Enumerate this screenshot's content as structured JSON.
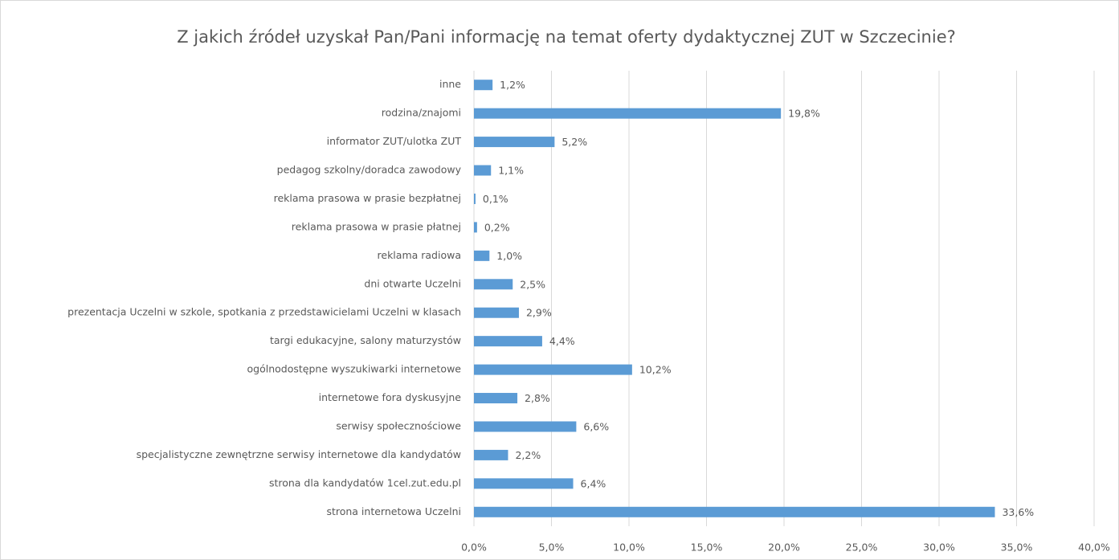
{
  "chart_data": {
    "type": "barh",
    "title": "Z jakich źródeł uzyskał Pan/Pani informację na temat oferty dydaktycznej ZUT w Szczecinie?",
    "categories": [
      "inne",
      "rodzina/znajomi",
      "informator ZUT/ulotka ZUT",
      "pedagog szkolny/doradca zawodowy",
      "reklama prasowa w prasie bezpłatnej",
      "reklama prasowa w prasie płatnej",
      "reklama radiowa",
      "dni otwarte Uczelni",
      "prezentacja Uczelni w szkole, spotkania z przedstawicielami Uczelni w klasach",
      "targi edukacyjne, salony maturzystów",
      "ogólnodostępne wyszukiwarki internetowe",
      "internetowe fora dyskusyjne",
      "serwisy społecznościowe",
      "specjalistyczne zewnętrzne serwisy internetowe dla kandydatów",
      "strona dla kandydatów 1cel.zut.edu.pl",
      "strona internetowa Uczelni"
    ],
    "values": [
      1.2,
      19.8,
      5.2,
      1.1,
      0.1,
      0.2,
      1.0,
      2.5,
      2.9,
      4.4,
      10.2,
      2.8,
      6.6,
      2.2,
      6.4,
      33.6
    ],
    "value_labels": [
      "1,2%",
      "19,8%",
      "5,2%",
      "1,1%",
      "0,1%",
      "0,2%",
      "1,0%",
      "2,5%",
      "2,9%",
      "4,4%",
      "10,2%",
      "2,8%",
      "6,6%",
      "2,2%",
      "6,4%",
      "33,6%"
    ],
    "color": "#5b9bd5",
    "xlim": [
      0,
      40
    ],
    "xticks": [
      {
        "value": 0,
        "label": "0,0%"
      },
      {
        "value": 5,
        "label": "5,0%"
      },
      {
        "value": 10,
        "label": "10,0%"
      },
      {
        "value": 15,
        "label": "15,0%"
      },
      {
        "value": 20,
        "label": "20,0%"
      },
      {
        "value": 25,
        "label": "25,0%"
      },
      {
        "value": 30,
        "label": "30,0%"
      },
      {
        "value": 35,
        "label": "35,0%"
      },
      {
        "value": 40,
        "label": "40,0%"
      }
    ],
    "grid": true
  }
}
